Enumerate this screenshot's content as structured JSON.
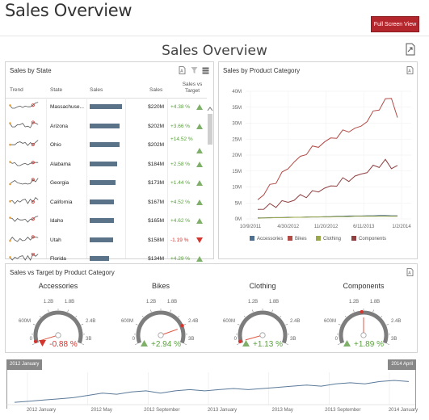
{
  "page": {
    "title": "Sales Overview",
    "full_screen_label": "Full Screen View"
  },
  "dashboard": {
    "title": "Sales Overview"
  },
  "state_grid": {
    "title": "Sales by State",
    "headers": {
      "trend": "Trend",
      "state": "State",
      "sales_bar": "Sales",
      "sales": "Sales",
      "svt": "Sales vs Target"
    },
    "rows": [
      {
        "state": "Massachuse...",
        "sales": "$220M",
        "svt": "+4.38 %",
        "dir": "up",
        "bar": 1.0
      },
      {
        "state": "Arizona",
        "sales": "$202M",
        "svt": "+3.66 %",
        "dir": "up",
        "bar": 0.92
      },
      {
        "state": "Ohio",
        "sales": "$202M",
        "svt": "+14.52 %",
        "dir": "up",
        "bar": 0.92
      },
      {
        "state": "Alabama",
        "sales": "$184M",
        "svt": "+2.58 %",
        "dir": "up",
        "bar": 0.84
      },
      {
        "state": "Georgia",
        "sales": "$173M",
        "svt": "+1.44 %",
        "dir": "up",
        "bar": 0.79
      },
      {
        "state": "California",
        "sales": "$167M",
        "svt": "+4.52 %",
        "dir": "up",
        "bar": 0.76
      },
      {
        "state": "Idaho",
        "sales": "$165M",
        "svt": "+4.62 %",
        "dir": "up",
        "bar": 0.75
      },
      {
        "state": "Utah",
        "sales": "$158M",
        "svt": "-1.19 %",
        "dir": "down",
        "bar": 0.72
      },
      {
        "state": "Florida",
        "sales": "$134M",
        "svt": "+4.29 %",
        "dir": "up",
        "bar": 0.61
      }
    ]
  },
  "category_chart": {
    "title": "Sales by Product Category",
    "chart_data": {
      "type": "line",
      "y_ticks": [
        "0M",
        "5M",
        "10M",
        "15M",
        "20M",
        "25M",
        "30M",
        "35M",
        "40M"
      ],
      "ylim": [
        0,
        40
      ],
      "x_ticks": [
        "10/9/2011",
        "4/30/2012",
        "11/20/2012",
        "6/11/2013",
        "1/2/2014"
      ],
      "series": [
        {
          "name": "Accessories",
          "color": "#4f6f8f",
          "values": [
            0.3,
            0.3,
            0.4,
            0.4,
            0.4,
            0.5,
            0.5,
            0.5,
            0.6,
            0.6,
            0.6,
            0.7,
            0.7,
            0.8,
            0.8,
            0.9,
            0.9,
            0.9,
            1.0,
            1.0,
            1.1,
            1.1,
            1.0,
            1.0
          ]
        },
        {
          "name": "Bikes",
          "color": "#b24a45",
          "values": [
            6,
            8,
            10,
            12,
            14,
            16,
            18,
            19,
            21,
            22,
            23,
            24,
            25,
            26,
            27,
            28,
            28,
            29,
            31,
            33,
            35,
            37,
            38,
            32
          ]
        },
        {
          "name": "Clothing",
          "color": "#9aa84a",
          "values": [
            0.2,
            0.3,
            0.3,
            0.4,
            0.4,
            0.4,
            0.5,
            0.5,
            0.5,
            0.6,
            0.6,
            0.6,
            0.6,
            0.7,
            0.7,
            0.7,
            0.8,
            0.8,
            0.8,
            0.8,
            0.8,
            0.8,
            0.8,
            0.8
          ]
        },
        {
          "name": "Components",
          "color": "#8f3f40",
          "values": [
            3,
            3.5,
            4,
            4.5,
            5,
            5.5,
            6,
            7,
            7.5,
            8,
            9,
            9.5,
            10,
            11,
            12,
            12.5,
            13,
            14,
            15,
            16,
            17,
            18,
            16,
            17
          ]
        }
      ]
    }
  },
  "gauges": {
    "title": "Sales vs Target by Product Category",
    "items": [
      {
        "name": "Accessories",
        "delta": "-0.88 %",
        "dir": "down",
        "labels": [
          "0",
          "600M",
          "1.2B",
          "1.8B",
          "2.4B",
          "3B"
        ],
        "value": 0.015,
        "target": 0.02
      },
      {
        "name": "Bikes",
        "delta": "+2.94 %",
        "dir": "up",
        "labels": [
          "0",
          "600M",
          "1.2B",
          "1.8B",
          "2.4B",
          "3B"
        ],
        "value": 0.82,
        "target": 0.8
      },
      {
        "name": "Clothing",
        "delta": "+1.13 %",
        "dir": "up",
        "labels": [
          "0",
          "600M",
          "1.2B",
          "1.8B",
          "2.4B",
          "3B"
        ],
        "value": 0.02,
        "target": 0.02
      },
      {
        "name": "Components",
        "delta": "+1.89 %",
        "dir": "up",
        "labels": [
          "0",
          "600M",
          "1.2B",
          "1.8B",
          "2.4B",
          "3B"
        ],
        "value": 0.5,
        "target": 0.48
      }
    ]
  },
  "range": {
    "start_label": "2012 January",
    "end_label": "2014 April",
    "x_ticks": [
      "2012 January",
      "2012 May",
      "2012 September",
      "2013 January",
      "2013 May",
      "2013 September",
      "2014 January"
    ],
    "chart_data": {
      "type": "line",
      "values": [
        1,
        1.5,
        2,
        2.5,
        3,
        4,
        5,
        4.5,
        5.5,
        6,
        5,
        6,
        6.5,
        6,
        6.5,
        7,
        6.5,
        7,
        7.5,
        8,
        8.5,
        8,
        9,
        9.5,
        9,
        10,
        10.5,
        10
      ]
    }
  },
  "icons": {
    "export": "export-icon",
    "filter": "filter-icon",
    "multi": "multiselect-icon"
  }
}
